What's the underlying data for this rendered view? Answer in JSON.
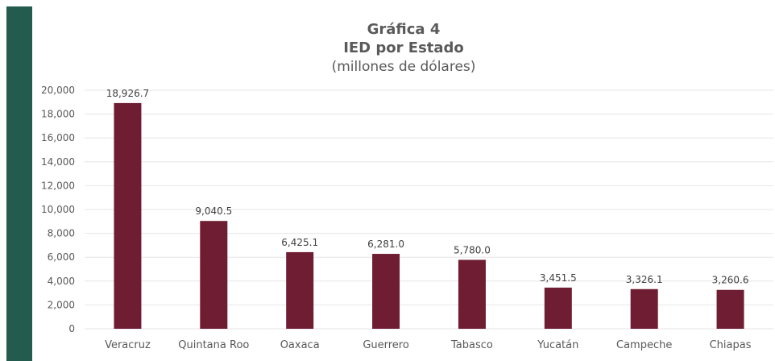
{
  "colors": {
    "accent_bar": "#235b4e",
    "bar": "#6f1d33",
    "grid": "#e6e6e6",
    "text": "#595959"
  },
  "header": {
    "title": "Gráfica 4",
    "subtitle": "IED por Estado",
    "unit": "(millones de dólares)"
  },
  "chart_data": {
    "type": "bar",
    "title": "Gráfica 4",
    "subtitle": "IED por Estado",
    "ylabel": "(millones de dólares)",
    "xlabel": "",
    "categories": [
      "Veracruz",
      "Quintana Roo",
      "Oaxaca",
      "Guerrero",
      "Tabasco",
      "Yucatán",
      "Campeche",
      "Chiapas"
    ],
    "values": [
      18926.7,
      9040.5,
      6425.1,
      6281.0,
      5780.0,
      3451.5,
      3326.1,
      3260.6
    ],
    "value_labels": [
      "18,926.7",
      "9,040.5",
      "6,425.1",
      "6,281.0",
      "5,780.0",
      "3,451.5",
      "3,326.1",
      "3,260.6"
    ],
    "ylim": [
      0,
      20000
    ],
    "yticks": [
      0,
      2000,
      4000,
      6000,
      8000,
      10000,
      12000,
      14000,
      16000,
      18000,
      20000
    ],
    "ytick_labels": [
      "0",
      "2,000",
      "4,000",
      "6,000",
      "8,000",
      "10,000",
      "12,000",
      "14,000",
      "16,000",
      "18,000",
      "20,000"
    ],
    "grid": true,
    "legend": "none"
  }
}
